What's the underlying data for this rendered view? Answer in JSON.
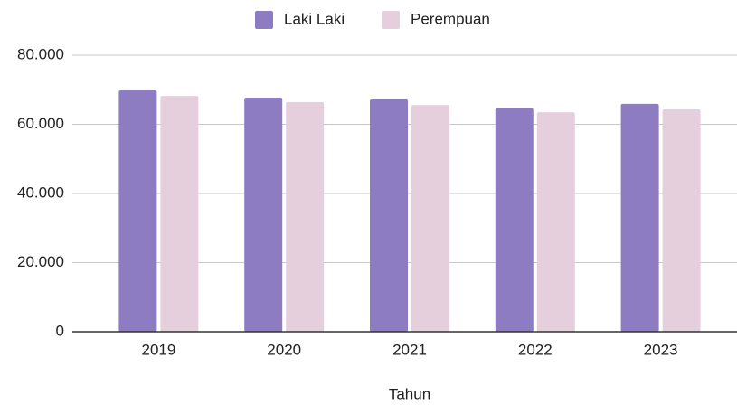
{
  "chart_data": {
    "type": "bar",
    "x_label": "Tahun",
    "categories": [
      "2019",
      "2020",
      "2021",
      "2022",
      "2023"
    ],
    "series": [
      {
        "name": "Laki Laki",
        "color": "#8e7cc3",
        "values": [
          69800,
          67700,
          67200,
          64600,
          65900
        ]
      },
      {
        "name": "Perempuan",
        "color": "#e6cfdc",
        "values": [
          68200,
          66400,
          65600,
          63500,
          64300
        ]
      }
    ],
    "ylim": [
      0,
      80000
    ],
    "yticks": [
      0,
      {
        "value": 20000,
        "label": "20.000"
      },
      {
        "value": 40000,
        "label": "40.000"
      },
      {
        "value": 60000,
        "label": "60.000"
      },
      {
        "value": 80000,
        "label": "80.000"
      }
    ],
    "grid": true,
    "legend": "top"
  }
}
